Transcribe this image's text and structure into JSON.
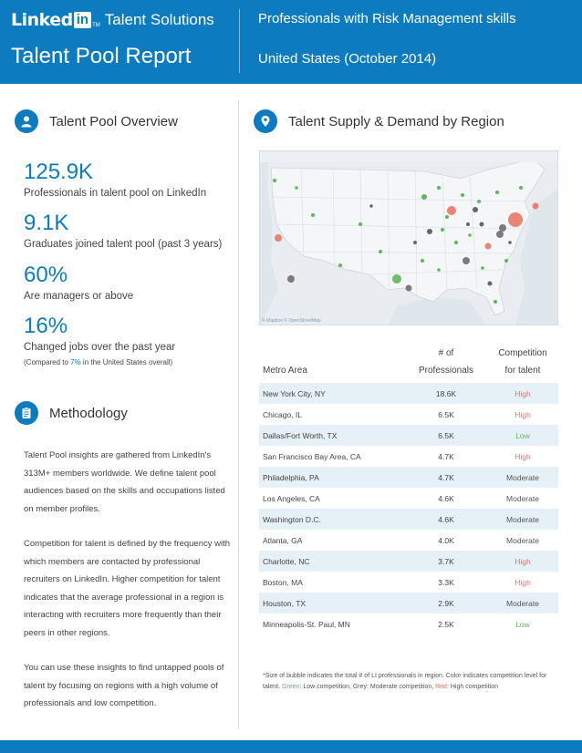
{
  "header": {
    "brand_linked": "Linked",
    "brand_in": "in",
    "brand_tm": "TM",
    "brand_product": "Talent Solutions",
    "report_title": "Talent Pool Report",
    "subject": "Professionals with Risk Management skills",
    "region": "United States (October 2014)"
  },
  "overview": {
    "title": "Talent Pool Overview",
    "icon": "person-icon",
    "stats": [
      {
        "value": "125.9K",
        "label": "Professionals in talent pool on LinkedIn"
      },
      {
        "value": "9.1K",
        "label": "Graduates joined talent pool (past 3 years)"
      },
      {
        "value": "60%",
        "label": "Are managers or above"
      },
      {
        "value": "16%",
        "label": "Changed jobs over the past year",
        "note_prefix": "(Compared to ",
        "note_accent": "7%",
        "note_suffix": " in the United States overall)"
      }
    ]
  },
  "methodology": {
    "title": "Methodology",
    "icon": "clipboard-icon",
    "paragraphs": [
      "Talent Pool insights are gathered from LinkedIn's 313M+ members worldwide. We define talent pool audiences based on the skills and occupations listed on member profiles.",
      "Competition for talent is defined by the frequency with which members are contacted by professional recruiters on LinkedIn. Higher competition for talent indicates that the average professional in a region is interacting with recruiters more frequently than their peers in other regions.",
      "You can use these insights to find untapped pools of talent by focusing on regions with a high volume of professionals and low competition."
    ]
  },
  "supply_demand": {
    "title": "Talent Supply & Demand by Region",
    "icon": "location-pin-icon",
    "map_credit": "© Mapbox © OpenStreetMap",
    "colors": {
      "high": "#e8705f",
      "moderate": "#666666",
      "low": "#5cb85c"
    }
  },
  "table": {
    "col_metro": "Metro Area",
    "col_count_line1": "# of",
    "col_count_line2": "Professionals",
    "col_comp_line1": "Competition",
    "col_comp_line2": "for talent",
    "rows": [
      {
        "metro": "New York City, NY",
        "count": "18.6K",
        "competition": "High"
      },
      {
        "metro": "Chicago, IL",
        "count": "6.5K",
        "competition": "High"
      },
      {
        "metro": "Dallas/Fort Worth, TX",
        "count": "6.5K",
        "competition": "Low"
      },
      {
        "metro": "San Francisco Bay Area, CA",
        "count": "4.7K",
        "competition": "High"
      },
      {
        "metro": "Philadelphia, PA",
        "count": "4.7K",
        "competition": "Moderate"
      },
      {
        "metro": "Los Angeles, CA",
        "count": "4.6K",
        "competition": "Moderate"
      },
      {
        "metro": "Washington D.C.",
        "count": "4.6K",
        "competition": "Moderate"
      },
      {
        "metro": "Atlanta, GA",
        "count": "4.0K",
        "competition": "Moderate"
      },
      {
        "metro": "Charlotte, NC",
        "count": "3.7K",
        "competition": "High"
      },
      {
        "metro": "Boston, MA",
        "count": "3.3K",
        "competition": "High"
      },
      {
        "metro": "Houston, TX",
        "count": "2.9K",
        "competition": "Moderate"
      },
      {
        "metro": "Minneapolis-St. Paul, MN",
        "count": "2.5K",
        "competition": "Low"
      }
    ]
  },
  "footnote": {
    "part1": "*Size of bubble indicates the total # of LI professionals in region. Color indicates competition level for talent. ",
    "green_label": "Green",
    "part2": ": Low competition, Grey: Moderate competition, ",
    "red_label": "Red",
    "part3": ": High competition"
  }
}
